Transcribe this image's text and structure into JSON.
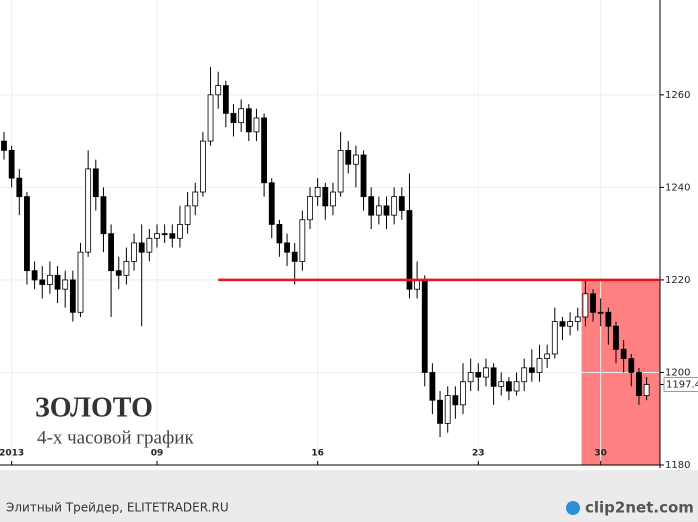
{
  "chart_data": {
    "type": "candlestick",
    "title": "ЗОЛОТО",
    "subtitle": "4-х часовой график",
    "categories": [
      null,
      "2013",
      null,
      null,
      null,
      null,
      null,
      null,
      null,
      null,
      null,
      null,
      null,
      null,
      null,
      null,
      null,
      null,
      null,
      null,
      "09",
      null,
      null,
      null,
      null,
      null,
      null,
      null,
      null,
      null,
      null,
      null,
      null,
      null,
      null,
      null,
      null,
      null,
      null,
      null,
      null,
      "16",
      null,
      null,
      null,
      null,
      null,
      null,
      null,
      null,
      null,
      null,
      null,
      null,
      null,
      null,
      null,
      null,
      null,
      null,
      null,
      null,
      "23",
      null,
      null,
      null,
      null,
      null,
      null,
      null,
      null,
      null,
      null,
      null,
      null,
      null,
      null,
      null,
      "30",
      null,
      null,
      null,
      null,
      null,
      null
    ],
    "open": [
      1250,
      1248,
      1242,
      1238,
      1222,
      1220,
      1219,
      1221,
      1218,
      1220,
      1213,
      1226,
      1244,
      1238,
      1230,
      1222,
      1221,
      1224,
      1228,
      1226,
      1229,
      1230,
      1230,
      1229,
      1232,
      1236,
      1239,
      1250,
      1260,
      1262,
      1256,
      1254,
      1257,
      1252,
      1255,
      1241,
      1232,
      1228,
      1226,
      1224,
      1233,
      1238,
      1240,
      1236,
      1239,
      1248,
      1245,
      1247,
      1238,
      1234,
      1236,
      1234,
      1238,
      1235,
      1218,
      1220,
      1200,
      1194,
      1189,
      1195,
      1193,
      1198,
      1200,
      1199,
      1201,
      1197,
      1198,
      1196,
      1198,
      1201,
      1200,
      1203,
      1204,
      1211,
      1210,
      1211,
      1212,
      1217,
      1213,
      1213,
      1210,
      1205,
      1203,
      1200,
      1195
    ],
    "high": [
      1252,
      1249,
      1244,
      1239,
      1224,
      1223,
      1224,
      1223,
      1222,
      1222,
      1228,
      1248,
      1246,
      1240,
      1232,
      1225,
      1227,
      1230,
      1232,
      1231,
      1232,
      1232,
      1232,
      1236,
      1239,
      1241,
      1252,
      1266,
      1265,
      1263,
      1258,
      1259,
      1258,
      1257,
      1256,
      1242,
      1233,
      1230,
      1228,
      1235,
      1240,
      1242,
      1241,
      1241,
      1252,
      1250,
      1249,
      1248,
      1240,
      1238,
      1238,
      1240,
      1240,
      1243,
      1224,
      1221,
      1202,
      1196,
      1197,
      1197,
      1202,
      1203,
      1202,
      1203,
      1202,
      1200,
      1199,
      1200,
      1203,
      1205,
      1206,
      1206,
      1214,
      1212,
      1213,
      1214,
      1220,
      1218,
      1216,
      1214,
      1211,
      1207,
      1204,
      1201,
      1199
    ],
    "low": [
      1246,
      1240,
      1234,
      1219,
      1218,
      1216,
      1217,
      1215,
      1214,
      1211,
      1212,
      1225,
      1235,
      1226,
      1212,
      1218,
      1219,
      1222,
      1210,
      1224,
      1227,
      1228,
      1227,
      1227,
      1230,
      1234,
      1238,
      1249,
      1257,
      1253,
      1251,
      1252,
      1250,
      1250,
      1238,
      1229,
      1225,
      1223,
      1219,
      1222,
      1231,
      1236,
      1233,
      1234,
      1238,
      1243,
      1240,
      1235,
      1231,
      1232,
      1231,
      1232,
      1233,
      1216,
      1216,
      1197,
      1191,
      1186,
      1187,
      1190,
      1191,
      1196,
      1196,
      1197,
      1193,
      1195,
      1194,
      1195,
      1196,
      1198,
      1198,
      1201,
      1203,
      1207,
      1208,
      1209,
      1210,
      1211,
      1210,
      1206,
      1202,
      1200,
      1197,
      1193,
      1194
    ],
    "close": [
      1248,
      1242,
      1238,
      1222,
      1220,
      1219,
      1221,
      1218,
      1220,
      1213,
      1226,
      1244,
      1238,
      1230,
      1222,
      1221,
      1224,
      1228,
      1226,
      1229,
      1230,
      1230,
      1229,
      1232,
      1236,
      1239,
      1250,
      1260,
      1262,
      1256,
      1254,
      1257,
      1252,
      1255,
      1241,
      1232,
      1228,
      1226,
      1224,
      1233,
      1238,
      1240,
      1236,
      1239,
      1248,
      1245,
      1247,
      1238,
      1234,
      1236,
      1234,
      1238,
      1235,
      1218,
      1220,
      1200,
      1194,
      1189,
      1195,
      1193,
      1198,
      1200,
      1199,
      1201,
      1197,
      1198,
      1196,
      1198,
      1201,
      1200,
      1203,
      1204,
      1211,
      1210,
      1211,
      1212,
      1217,
      1213,
      1213,
      1210,
      1205,
      1203,
      1200,
      1195,
      1197.4
    ],
    "up_color": "#ffffff",
    "down_color": "#000000",
    "ylim": [
      1180,
      1280.5
    ],
    "yticks": [
      1180,
      1200,
      1220,
      1240,
      1260
    ],
    "grid": true,
    "last_price": 1197.4,
    "resistance": {
      "value": 1220,
      "start": 28,
      "color": "#e8141e"
    },
    "highlight": {
      "start": 76,
      "low": 1180,
      "high": 1220,
      "color": "#ff8080"
    }
  },
  "footer": {
    "source": "Элитный Трейдер, ELITETRADER.RU",
    "logo": "clip2net.com"
  }
}
